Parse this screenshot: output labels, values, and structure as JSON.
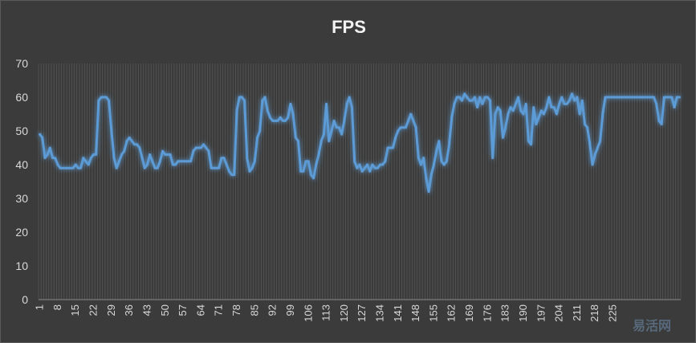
{
  "chart_data": {
    "type": "line",
    "title": "FPS",
    "xlabel": "",
    "ylabel": "",
    "ylim": [
      0,
      70
    ],
    "yticks": [
      0,
      10,
      20,
      30,
      40,
      50,
      60,
      70
    ],
    "x_start": 1,
    "x_tick_step": 7,
    "x_tick_labels": [
      "1",
      "8",
      "15",
      "22",
      "29",
      "36",
      "43",
      "50",
      "57",
      "64",
      "71",
      "78",
      "85",
      "92",
      "99",
      "106",
      "113",
      "120",
      "127",
      "134",
      "141",
      "148",
      "155",
      "162",
      "169",
      "176",
      "183",
      "190",
      "197",
      "204",
      "211",
      "218",
      "225"
    ],
    "grid": "vertical",
    "legend": "none",
    "line_color": "#5b9bd5",
    "series": [
      {
        "values": [
          49,
          48,
          42,
          43,
          45,
          42,
          42,
          40,
          39,
          39,
          39,
          39,
          39,
          39,
          40,
          39,
          39,
          42,
          41,
          40,
          42,
          43,
          43,
          59,
          60,
          60,
          60,
          59,
          50,
          42,
          39,
          41,
          43,
          44,
          47,
          48,
          47,
          46,
          46,
          45,
          42,
          39,
          40,
          43,
          41,
          39,
          39,
          41,
          44,
          43,
          43,
          43,
          40,
          40,
          41,
          41,
          41,
          41,
          41,
          41,
          44,
          45,
          45,
          45,
          46,
          45,
          44,
          39,
          39,
          39,
          39,
          42,
          42,
          40,
          38,
          37,
          37,
          56,
          60,
          60,
          59,
          42,
          38,
          39,
          41,
          48,
          50,
          59,
          60,
          56,
          54,
          53,
          53,
          53,
          54,
          53,
          53,
          54,
          58,
          55,
          48,
          47,
          38,
          38,
          41,
          41,
          37,
          36,
          40,
          43,
          47,
          49,
          58,
          47,
          50,
          53,
          51,
          51,
          49,
          53,
          58,
          60,
          57,
          41,
          39,
          40,
          38,
          39,
          40,
          38,
          40,
          39,
          39,
          40,
          40,
          41,
          45,
          45,
          45,
          48,
          50,
          51,
          51,
          51,
          53,
          55,
          53,
          51,
          42,
          40,
          42,
          36,
          32,
          37,
          40,
          44,
          47,
          41,
          40,
          41,
          46,
          54,
          58,
          60,
          60,
          59,
          61,
          60,
          59,
          59,
          60,
          57,
          60,
          58,
          60,
          60,
          59,
          42,
          55,
          57,
          56,
          48,
          51,
          55,
          57,
          56,
          58,
          60,
          56,
          55,
          58,
          47,
          46,
          57,
          52,
          54,
          56,
          55,
          57,
          60,
          57,
          57,
          55,
          58,
          60,
          58,
          58,
          59,
          61,
          59,
          60,
          55,
          59,
          52,
          51,
          46,
          40,
          43,
          45,
          47,
          55,
          60,
          60,
          60,
          60,
          60,
          60,
          60,
          60,
          60,
          60,
          60,
          60,
          60,
          60,
          60,
          60,
          60,
          60,
          60,
          60,
          58,
          53,
          52,
          60,
          60,
          60,
          60,
          57,
          60,
          60
        ]
      }
    ]
  },
  "watermark": "易活网"
}
